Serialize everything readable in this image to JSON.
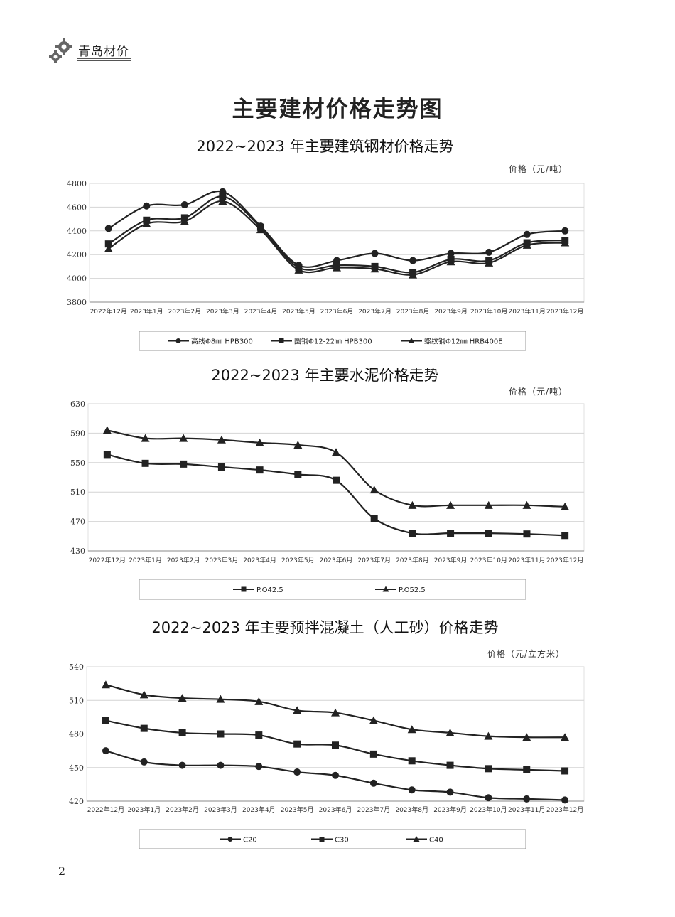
{
  "header": {
    "brand": "青岛材价",
    "icon": "gear-icon"
  },
  "page_title": "主要建材价格走势图",
  "page_number": "2",
  "colors": {
    "line": "#222222",
    "grid": "#d4d4d4",
    "border": "#999999"
  },
  "chart_data": [
    {
      "type": "line",
      "title": "2022~2023 年主要建筑钢材价格走势",
      "unit": "价格（元/吨）",
      "categories": [
        "2022年12月",
        "2023年1月",
        "2023年2月",
        "2023年3月",
        "2023年4月",
        "2023年5月",
        "2023年6月",
        "2023年7月",
        "2023年8月",
        "2023年9月",
        "2023年10月",
        "2023年11月",
        "2023年12月"
      ],
      "ylim": [
        3800,
        4800
      ],
      "yticks": [
        3800,
        4000,
        4200,
        4400,
        4600,
        4800
      ],
      "grid": true,
      "legend_position": "bottom",
      "series": [
        {
          "name": "高线Φ8㎜ HPB300",
          "marker": "circle",
          "values": [
            4420,
            4610,
            4620,
            4730,
            4440,
            4110,
            4150,
            4210,
            4150,
            4210,
            4220,
            4370,
            4400
          ]
        },
        {
          "name": "圆钢Φ12-22㎜ HPB300",
          "marker": "square",
          "values": [
            4290,
            4490,
            4510,
            4690,
            4430,
            4090,
            4110,
            4100,
            4050,
            4160,
            4150,
            4300,
            4320
          ]
        },
        {
          "name": "螺纹钢Φ12㎜ HRB400E",
          "marker": "triangle",
          "values": [
            4250,
            4460,
            4480,
            4650,
            4410,
            4070,
            4090,
            4080,
            4030,
            4140,
            4130,
            4280,
            4300
          ]
        }
      ]
    },
    {
      "type": "line",
      "title": "2022~2023 年主要水泥价格走势",
      "unit": "价格（元/吨）",
      "categories": [
        "2022年12月",
        "2023年1月",
        "2023年2月",
        "2023年3月",
        "2023年4月",
        "2023年5月",
        "2023年6月",
        "2023年7月",
        "2023年8月",
        "2023年9月",
        "2023年10月",
        "2023年11月",
        "2023年12月"
      ],
      "ylim": [
        430,
        630
      ],
      "yticks": [
        430,
        470,
        510,
        550,
        590,
        630
      ],
      "grid": true,
      "legend_position": "bottom",
      "series": [
        {
          "name": "P.O42.5",
          "marker": "square",
          "values": [
            561,
            549,
            548,
            544,
            540,
            534,
            526,
            474,
            454,
            454,
            454,
            453,
            451
          ]
        },
        {
          "name": "P.O52.5",
          "marker": "triangle",
          "values": [
            594,
            583,
            583,
            581,
            577,
            574,
            564,
            513,
            492,
            492,
            492,
            492,
            490
          ]
        }
      ]
    },
    {
      "type": "line",
      "title": "2022~2023 年主要预拌混凝土（人工砂）价格走势",
      "unit": "价格（元/立方米）",
      "categories": [
        "2022年12月",
        "2023年1月",
        "2023年2月",
        "2023年3月",
        "2023年4月",
        "2023年5月",
        "2023年6月",
        "2023年7月",
        "2023年8月",
        "2023年9月",
        "2023年10月",
        "2023年11月",
        "2023年12月"
      ],
      "ylim": [
        420,
        540
      ],
      "yticks": [
        420,
        450,
        480,
        510,
        540
      ],
      "grid": true,
      "legend_position": "bottom",
      "series": [
        {
          "name": "C20",
          "marker": "circle",
          "values": [
            465,
            455,
            452,
            452,
            451,
            446,
            443,
            436,
            430,
            428,
            423,
            422,
            421
          ]
        },
        {
          "name": "C30",
          "marker": "square",
          "values": [
            492,
            485,
            481,
            480,
            479,
            471,
            470,
            462,
            456,
            452,
            449,
            448,
            447
          ]
        },
        {
          "name": "C40",
          "marker": "triangle",
          "values": [
            524,
            515,
            512,
            511,
            509,
            501,
            499,
            492,
            484,
            481,
            478,
            477,
            477
          ]
        }
      ]
    }
  ]
}
